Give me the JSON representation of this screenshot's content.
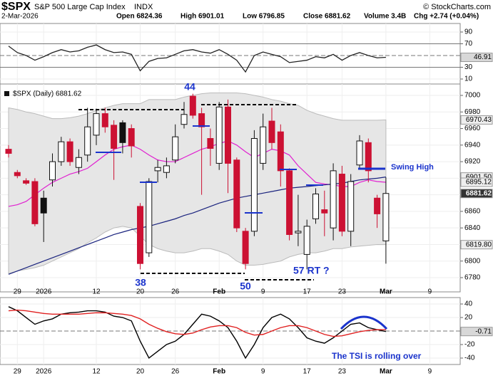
{
  "header": {
    "symbol": "$SPX",
    "name": "S&P 500 Large Cap Index",
    "exchange": "INDX",
    "source": "© StockCharts.com",
    "date": "2-Mar-2026",
    "stats": [
      "Open 6824.36",
      "High 6901.01",
      "Low 6796.85",
      "Close 6881.62",
      "Volume 3.4B",
      "Chg +2.74 (+0.04%)"
    ]
  },
  "chart_data": [
    {
      "type": "line",
      "values": [
        66,
        55,
        50,
        42,
        48,
        55,
        60,
        56,
        58,
        64,
        68,
        60,
        55,
        56,
        52,
        24,
        40,
        45,
        46,
        52,
        58,
        60,
        56,
        54,
        60,
        52,
        42,
        22,
        50,
        56,
        52,
        48,
        38,
        40,
        42,
        48,
        46,
        52,
        42,
        50,
        55,
        50,
        46,
        46.91,
        null,
        null,
        null,
        null,
        null,
        null,
        null,
        null
      ],
      "color": "#222222",
      "ylim": [
        1.5,
        104.5
      ],
      "yticks": [
        10,
        30,
        70,
        90
      ],
      "hlines": [
        30,
        50,
        70
      ],
      "markers": [
        {
          "value": 46.91,
          "fill": "#d8d8d8"
        }
      ]
    },
    {
      "type": "candlestick",
      "legend": "$SPX (Daily) 6881.62",
      "categories": [
        null,
        "29",
        null,
        null,
        "2026",
        null,
        null,
        null,
        null,
        null,
        "12",
        null,
        null,
        null,
        null,
        "20",
        null,
        null,
        null,
        "26",
        null,
        null,
        null,
        null,
        "Feb",
        null,
        null,
        null,
        null,
        "9",
        null,
        null,
        null,
        null,
        "17",
        null,
        null,
        null,
        "23",
        null,
        null,
        null,
        null,
        "Mar",
        null,
        null,
        null,
        null,
        "9",
        null,
        null,
        null
      ],
      "open": [
        6935,
        6907,
        6897,
        6896,
        6876,
        6898,
        6920,
        6944,
        6913,
        6928,
        6952,
        6978,
        6964,
        6967,
        6960,
        6866,
        6810,
        6909,
        6907,
        6922,
        6965,
        6999,
        6978,
        6948,
        6918,
        6986,
        6922,
        6836,
        6836,
        6918,
        6969,
        6956,
        6909,
        6834,
        6808,
        6851,
        6862,
        6840,
        6905,
        6836,
        6916,
        6943,
        6876,
        6824.36,
        null,
        null,
        null,
        null,
        null,
        null,
        null,
        null
      ],
      "high": [
        6940,
        6910,
        6900,
        6900,
        6885,
        6930,
        6950,
        6948,
        6935,
        6985,
        6984,
        6985,
        6970,
        6970,
        6965,
        6870,
        6900,
        6922,
        6925,
        6965,
        6992,
        7002,
        6985,
        6960,
        6992,
        6995,
        6925,
        6840,
        6958,
        6978,
        6985,
        6965,
        6912,
        6880,
        6850,
        6888,
        6885,
        6918,
        6915,
        6905,
        6952,
        6948,
        6880,
        6901.01,
        null,
        null,
        null,
        null,
        null,
        null,
        null,
        null
      ],
      "low": [
        6925,
        6900,
        6892,
        6842,
        6823,
        6890,
        6915,
        6915,
        6905,
        6920,
        6940,
        6955,
        6898,
        6930,
        6925,
        6790,
        6805,
        6895,
        6900,
        6918,
        6960,
        6972,
        6880,
        6915,
        6910,
        6882,
        6835,
        6790,
        6830,
        6910,
        6935,
        6890,
        6825,
        6818,
        6790,
        6845,
        6830,
        6825,
        6830,
        6818,
        6912,
        6895,
        6840,
        6796.85,
        null,
        null,
        null,
        null,
        null,
        null,
        null,
        null
      ],
      "close": [
        6930,
        6903,
        6894,
        6845,
        6858,
        6920,
        6944,
        6920,
        6925,
        6962,
        6978,
        6962,
        6936,
        6943,
        6939,
        6797,
        6896,
        6913,
        6915,
        6950,
        6977,
        6976,
        6962,
        6936,
        6986,
        6918,
        6840,
        6797,
        6948,
        6962,
        6943,
        6909,
        6832,
        6836,
        6842,
        6881,
        6858,
        6909,
        6836,
        6896,
        6945,
        6909,
        6857,
        6881.62,
        null,
        null,
        null,
        null,
        null,
        null,
        null,
        null
      ],
      "band": {
        "color": "#e6e6e6",
        "upper": [
          6985,
          6983,
          6980,
          6978,
          6975,
          6972,
          6972,
          6973,
          6975,
          6978,
          6982,
          6985,
          6988,
          6990,
          6990,
          6990,
          6995,
          6995,
          6995,
          6995,
          6998,
          7000,
          7002,
          7003,
          7003,
          7003,
          7003,
          7002,
          7000,
          6998,
          6995,
          6993,
          6990,
          6988,
          6982,
          6978,
          6975,
          6972,
          6970,
          6970,
          6970,
          6970,
          6970,
          6970.43,
          null,
          null,
          null,
          null,
          null,
          null,
          null,
          null
        ],
        "lower": [
          6785,
          6788,
          6790,
          6792,
          6795,
          6800,
          6805,
          6810,
          6815,
          6822,
          6828,
          6835,
          6840,
          6842,
          6840,
          6830,
          6820,
          6815,
          6812,
          6810,
          6810,
          6812,
          6815,
          6815,
          6812,
          6808,
          6800,
          6795,
          6795,
          6796,
          6798,
          6800,
          6805,
          6808,
          6810,
          6810,
          6812,
          6815,
          6815,
          6817,
          6818,
          6819,
          6820,
          6819.8,
          null,
          null,
          null,
          null,
          null,
          null,
          null,
          null
        ]
      },
      "series": [
        {
          "color": "#e020d0",
          "values": [
            6866,
            6868,
            6872,
            6880,
            6888,
            6895,
            6900,
            6905,
            6908,
            6912,
            6920,
            6928,
            6935,
            6938,
            6940,
            6935,
            6928,
            6922,
            6920,
            6920,
            6925,
            6930,
            6935,
            6938,
            6942,
            6945,
            6940,
            6932,
            6925,
            6930,
            6935,
            6933,
            6928,
            6915,
            6905,
            6895,
            6893,
            6892,
            6890,
            6890,
            6895,
            6898,
            6896,
            6895.12,
            null,
            null,
            null,
            null,
            null,
            null,
            null,
            null
          ]
        },
        {
          "color": "#1a237e",
          "values": [
            6784,
            6788,
            6792,
            6796,
            6800,
            6804,
            6808,
            6812,
            6816,
            6820,
            6824,
            6828,
            6832,
            6835,
            6838,
            6840,
            6842,
            6845,
            6848,
            6851,
            6855,
            6858,
            6862,
            6866,
            6870,
            6873,
            6876,
            6878,
            6880,
            6882,
            6884,
            6886,
            6888,
            6889,
            6890,
            6891,
            6892,
            6893,
            6894,
            6896,
            6898,
            6899,
            6900,
            6901.5,
            null,
            null,
            null,
            null,
            null,
            null,
            null,
            null
          ]
        }
      ],
      "ylim": [
        6762.8,
        7013.75
      ],
      "yticks": [
        6780,
        6800,
        6820,
        6840,
        6860,
        6880,
        6900,
        6920,
        6940,
        6960,
        6980,
        7000
      ],
      "grid": true,
      "markers": [
        {
          "value": 6970.43,
          "fill": "#eeeeee"
        },
        {
          "value": 6901.5,
          "label": "6901.50",
          "fill": "#eeeeee"
        },
        {
          "value": 6895.12,
          "fill": "#eeeeee"
        },
        {
          "value": 6881.62,
          "fill": "#333333"
        },
        {
          "value": 6819.8,
          "label": "6819.80",
          "fill": "#eeeeee"
        }
      ],
      "annotations": [
        "44",
        "38",
        "50",
        "57 RT  ?",
        "Swing High"
      ]
    },
    {
      "type": "line",
      "series": [
        {
          "color": "#000000",
          "values": [
            36,
            30,
            20,
            10,
            15,
            18,
            25,
            27,
            28,
            30,
            30,
            28,
            22,
            20,
            15,
            -15,
            -40,
            -30,
            -20,
            -15,
            -5,
            10,
            25,
            22,
            15,
            5,
            -15,
            -40,
            -20,
            5,
            20,
            25,
            18,
            5,
            -10,
            -15,
            -18,
            -10,
            0,
            10,
            12,
            5,
            2,
            -0.71,
            null,
            null,
            null,
            null,
            null,
            null,
            null,
            null
          ]
        },
        {
          "color": "#e02020",
          "values": [
            30,
            31,
            30,
            28,
            26,
            25,
            25,
            25,
            25,
            26,
            27,
            27,
            26,
            25,
            23,
            18,
            10,
            4,
            -1,
            -4,
            -5,
            -3,
            2,
            6,
            8,
            8,
            5,
            -2,
            -6,
            -5,
            0,
            5,
            8,
            8,
            5,
            0,
            -5,
            -8,
            -7,
            -4,
            -1,
            1,
            2,
            2,
            null,
            null,
            null,
            null,
            null,
            null,
            null,
            null
          ]
        }
      ],
      "ylim": [
        -49.5,
        49.5
      ],
      "yticks": [
        -40,
        -20,
        20,
        40
      ],
      "hlines": [
        0
      ],
      "markers": [
        {
          "value": -0.71,
          "fill": "#d8d8d8"
        }
      ],
      "annotations": [
        "The TSI is rolling over"
      ]
    }
  ]
}
